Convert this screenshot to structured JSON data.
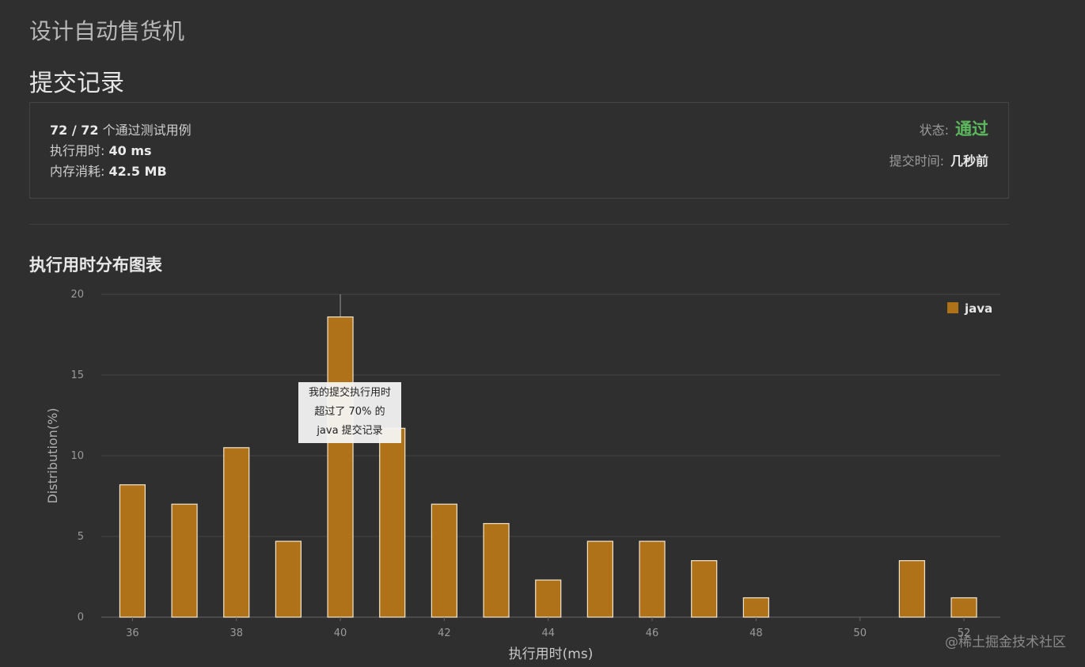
{
  "problem_title": "设计自动售货机",
  "section_title": "提交记录",
  "result": {
    "passed": "72 / 72",
    "passed_suffix": " 个通过测试用例",
    "runtime_label": "执行用时: ",
    "runtime_value": "40 ms",
    "memory_label": "内存消耗: ",
    "memory_value": "42.5 MB",
    "status_label": "状态:",
    "status_value": "通过",
    "status_color": "#5cb85c",
    "submit_time_label": "提交时间:",
    "submit_time_value": "几秒前"
  },
  "chart_title": "执行用时分布图表",
  "tooltip": {
    "line1": "我的提交执行用时",
    "line2": "超过了 70% 的",
    "line3": "java 提交记录"
  },
  "watermark": "@稀土掘金技术社区",
  "chart_data": {
    "type": "bar",
    "x": [
      36,
      37,
      38,
      39,
      40,
      41,
      42,
      43,
      44,
      45,
      46,
      47,
      48,
      51,
      52
    ],
    "series": [
      {
        "name": "java",
        "values": [
          8.2,
          7.0,
          10.5,
          4.7,
          18.6,
          11.7,
          7.0,
          5.8,
          2.3,
          4.7,
          4.7,
          3.5,
          1.2,
          3.5,
          1.2
        ],
        "color": "#b07219"
      }
    ],
    "xlabel": "执行用时(ms)",
    "ylabel": "Distribution(%)",
    "xlim": [
      35.4,
      52.7
    ],
    "ylim": [
      0,
      20
    ],
    "x_ticks": [
      36,
      38,
      40,
      42,
      44,
      46,
      48,
      50,
      52
    ],
    "y_ticks": [
      0,
      5,
      10,
      15,
      20
    ],
    "highlight_x": 40,
    "grid": true,
    "legend_position": "top-right"
  }
}
